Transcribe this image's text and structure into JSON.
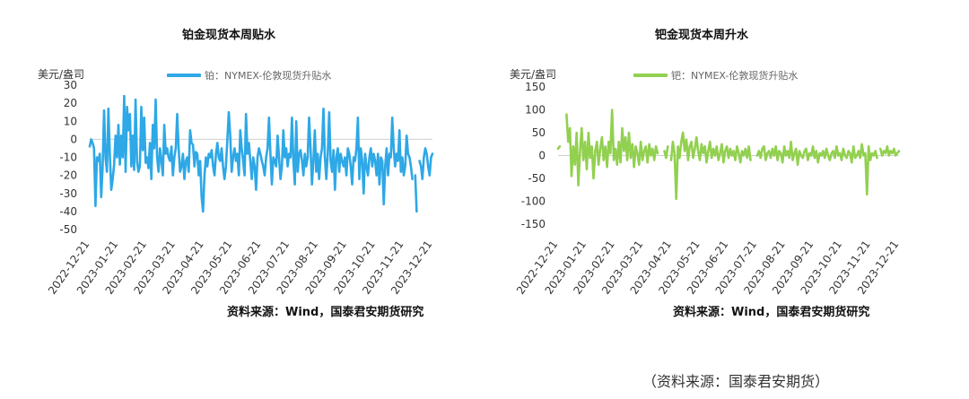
{
  "caption": "（资料来源：国泰君安期货）",
  "chart_data": [
    {
      "type": "line",
      "title": "铂金现货本周贴水",
      "ylabel": "美元/盎司",
      "legend": "铂：NYMEX-伦敦现货升贴水",
      "legend_position": "top",
      "source": "资料来源：Wind，国泰君安期货研究",
      "ylim": [
        -50,
        30
      ],
      "yticks": [
        30,
        20,
        10,
        0,
        -10,
        -20,
        -30,
        -40,
        -50
      ],
      "xticks": [
        "2022-12-21",
        "2023-01-21",
        "2023-02-21",
        "2023-03-21",
        "2023-04-21",
        "2023-05-21",
        "2023-06-21",
        "2023-07-21",
        "2023-08-21",
        "2023-09-21",
        "2023-10-21",
        "2023-11-21",
        "2023-12-21"
      ],
      "grid": false,
      "color": "#2ea8e6",
      "series": [
        {
          "name": "铂：NYMEX-伦敦现货升贴水",
          "values": [
            -4,
            0,
            -2,
            -5,
            -37,
            -10,
            -12,
            -8,
            -32,
            -15,
            16,
            -10,
            -18,
            17,
            -8,
            -28,
            -22,
            -14,
            2,
            -10,
            8,
            -14,
            2,
            -10,
            24,
            -18,
            18,
            5,
            14,
            -15,
            2,
            -17,
            22,
            -12,
            -18,
            -15,
            18,
            -6,
            12,
            -13,
            -10,
            -16,
            -2,
            -22,
            8,
            -5,
            22,
            -10,
            -18,
            -5,
            -12,
            -20,
            8,
            -8,
            -5,
            -10,
            -12,
            -4,
            -20,
            -10,
            -5,
            14,
            -5,
            -18,
            -15,
            -8,
            -22,
            -12,
            -10,
            -18,
            5,
            -2,
            -3,
            -15,
            -7,
            -8,
            -20,
            -12,
            -32,
            -40,
            -20,
            -10,
            -15,
            -8,
            -10,
            -6,
            -15,
            -20,
            -8,
            -2,
            -10,
            -12,
            -5,
            -15,
            -22,
            -15,
            0,
            15,
            2,
            -18,
            -10,
            -5,
            -12,
            -8,
            -20,
            5,
            -5,
            -12,
            -20,
            14,
            -8,
            -2,
            -12,
            -22,
            -10,
            -15,
            -28,
            -10,
            -5,
            -8,
            -12,
            -15,
            -20,
            -10,
            -5,
            12,
            -8,
            -25,
            -10,
            -12,
            -15,
            2,
            -10,
            -22,
            -15,
            5,
            -10,
            -5,
            -15,
            -8,
            -10,
            12,
            -12,
            -25,
            10,
            -18,
            -8,
            -6,
            -12,
            -20,
            -8,
            -15,
            -10,
            12,
            -5,
            -25,
            -12,
            5,
            -18,
            -8,
            -22,
            -10,
            -5,
            17,
            -10,
            -22,
            -8,
            15,
            -12,
            -18,
            -6,
            -28,
            -10,
            -5,
            -18,
            -8,
            -12,
            -15,
            -10,
            -20,
            -5,
            -8,
            -15,
            -25,
            -10,
            -12,
            -5,
            12,
            -22,
            -5,
            -12,
            -30,
            -8,
            -15,
            -20,
            -10,
            -5,
            -15,
            -8,
            -12,
            -20,
            -8,
            -25,
            -10,
            -12,
            -36,
            -15,
            -5,
            -20,
            -8,
            -10,
            12,
            -5,
            -15,
            -8,
            -12,
            5,
            -18,
            -10,
            -20,
            -15,
            2,
            -8,
            -10,
            -15,
            -22,
            null,
            -20,
            -40,
            null,
            -12,
            -15,
            -22,
            -10,
            -5,
            -8,
            -15,
            -20,
            -10,
            -8
          ]
        }
      ]
    },
    {
      "type": "line",
      "title": "钯金现货本周升水",
      "ylabel": "美元/盎司",
      "legend": "钯：NYMEX-伦敦现货升贴水",
      "legend_position": "top",
      "source": "资料来源：Wind，国泰君安期货研究",
      "ylim": [
        -150,
        150
      ],
      "yticks": [
        150,
        100,
        50,
        0,
        -50,
        -100,
        -150
      ],
      "xticks": [
        "2022-12-21",
        "2023-01-21",
        "2023-02-21",
        "2023-03-21",
        "2023-04-21",
        "2023-05-21",
        "2023-06-21",
        "2023-07-21",
        "2023-08-21",
        "2023-09-21",
        "2023-10-21",
        "2023-11-21",
        "2023-12-21"
      ],
      "grid": false,
      "color": "#92d050",
      "series": [
        {
          "name": "钯：NYMEX-伦敦现货升贴水",
          "values": [
            15,
            20,
            null,
            -40,
            null,
            90,
            30,
            60,
            -45,
            20,
            -20,
            50,
            -65,
            10,
            60,
            -10,
            30,
            -30,
            50,
            -5,
            20,
            -50,
            10,
            30,
            -20,
            15,
            40,
            -10,
            20,
            -25,
            30,
            5,
            100,
            -10,
            15,
            -20,
            30,
            -15,
            60,
            10,
            40,
            -10,
            50,
            -5,
            25,
            -25,
            20,
            5,
            -20,
            30,
            -10,
            10,
            20,
            -15,
            25,
            0,
            15,
            -10,
            20,
            5,
            null,
            -20,
            null,
            10,
            -5,
            20,
            null,
            -10,
            30,
            5,
            -95,
            20,
            -5,
            30,
            50,
            10,
            35,
            -10,
            20,
            30,
            -5,
            15,
            40,
            10,
            -10,
            25,
            5,
            20,
            -15,
            10,
            30,
            -5,
            15,
            0,
            20,
            -10,
            5,
            25,
            -15,
            10,
            20,
            -5,
            15,
            0,
            10,
            -10,
            20,
            5,
            -15,
            10,
            0,
            15,
            -5,
            20,
            -10,
            null,
            5,
            null,
            0,
            10,
            -5,
            15,
            20,
            -10,
            5,
            10,
            -5,
            15,
            0,
            20,
            -10,
            10,
            5,
            -15,
            20,
            0,
            10,
            -5,
            30,
            -10,
            5,
            15,
            -20,
            10,
            0,
            -5,
            10,
            15,
            -10,
            5,
            0,
            20,
            -5,
            10,
            -15,
            5,
            0,
            10,
            -5,
            15,
            0,
            -10,
            5,
            10,
            -5,
            20,
            0,
            5,
            -10,
            15,
            0,
            -5,
            10,
            5,
            -15,
            20,
            -5,
            0,
            10,
            -5,
            25,
            0,
            5,
            -85,
            20,
            -10,
            5,
            0,
            10,
            -5,
            null,
            15,
            0,
            10,
            5,
            20,
            0,
            10,
            5,
            15,
            0,
            5,
            10
          ]
        }
      ]
    }
  ]
}
